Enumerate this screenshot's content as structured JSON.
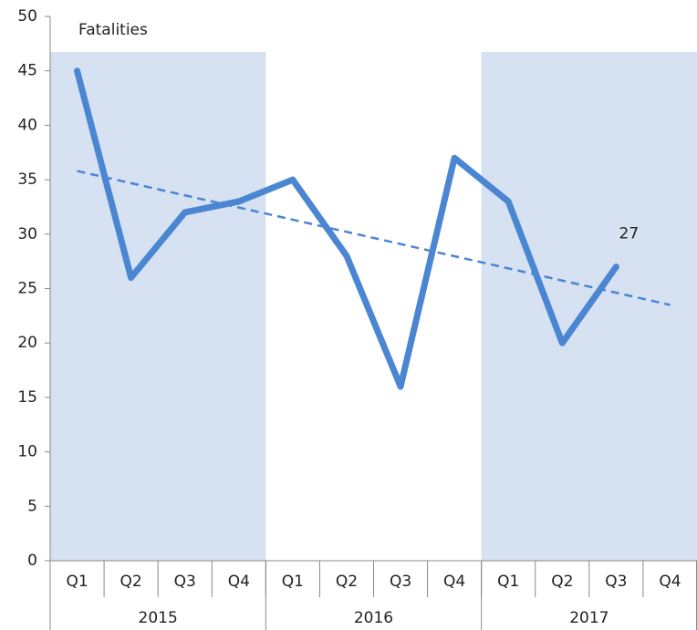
{
  "chart_data": {
    "type": "line",
    "title": "Fatalities",
    "categories": [
      "Q1",
      "Q2",
      "Q3",
      "Q4",
      "Q1",
      "Q2",
      "Q3",
      "Q4",
      "Q1",
      "Q2",
      "Q3",
      "Q4"
    ],
    "groups": [
      {
        "label": "2015",
        "size": 4,
        "shaded": true
      },
      {
        "label": "2016",
        "size": 4,
        "shaded": false
      },
      {
        "label": "2017",
        "size": 4,
        "shaded": true
      }
    ],
    "series": [
      {
        "values": [
          45,
          26,
          32,
          33,
          35,
          28,
          16,
          37,
          33,
          20,
          27,
          null
        ],
        "color": "#4a86d1"
      }
    ],
    "trend": {
      "values": [
        35.8,
        23.5
      ],
      "color": "#4a86d1"
    },
    "label_last_point": true,
    "shade_color": "#d6e1f1",
    "ylim": [
      0,
      50
    ],
    "yticks": [
      0,
      5,
      10,
      15,
      20,
      25,
      30,
      35,
      40,
      45,
      50
    ]
  }
}
